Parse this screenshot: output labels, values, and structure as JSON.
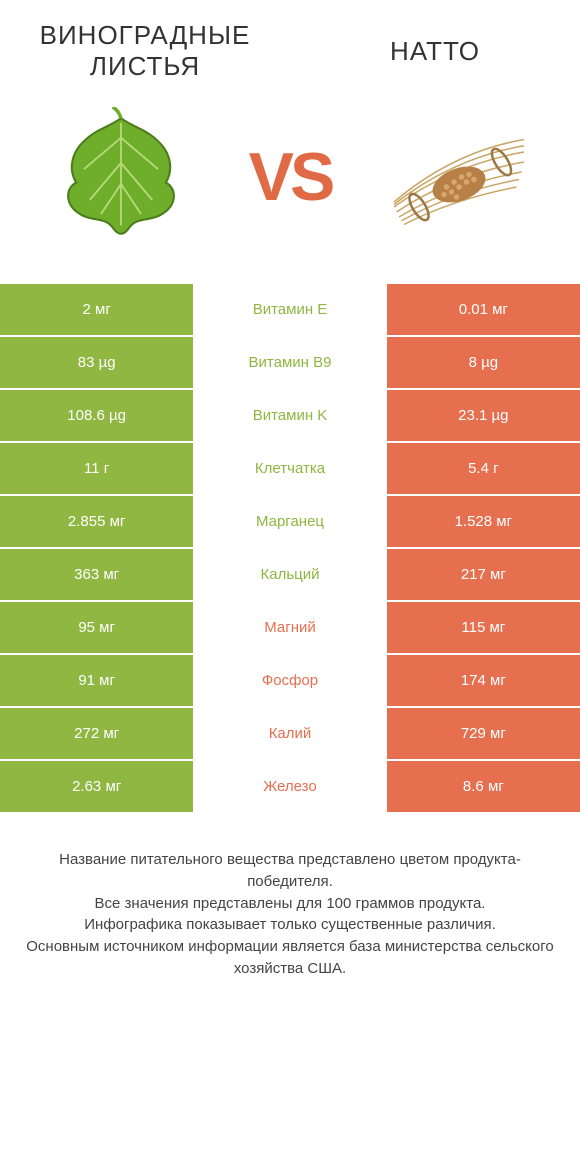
{
  "colors": {
    "green": "#8fb741",
    "orange": "#e56f4f",
    "white": "#ffffff",
    "text": "#333333",
    "vs": "#e06a45"
  },
  "header": {
    "left_title": "ВИНОГРАДНЫЕ\nЛИСТЬЯ",
    "right_title": "НАТТО",
    "vs": "VS"
  },
  "rows": [
    {
      "left": "2 мг",
      "mid": "Витамин E",
      "right": "0.01 мг",
      "winner": "left"
    },
    {
      "left": "83 µg",
      "mid": "Витамин B9",
      "right": "8 µg",
      "winner": "left"
    },
    {
      "left": "108.6 µg",
      "mid": "Витамин K",
      "right": "23.1 µg",
      "winner": "left"
    },
    {
      "left": "11 г",
      "mid": "Клетчатка",
      "right": "5.4 г",
      "winner": "left"
    },
    {
      "left": "2.855 мг",
      "mid": "Марганец",
      "right": "1.528 мг",
      "winner": "left"
    },
    {
      "left": "363 мг",
      "mid": "Кальций",
      "right": "217 мг",
      "winner": "left"
    },
    {
      "left": "95 мг",
      "mid": "Магний",
      "right": "115 мг",
      "winner": "right"
    },
    {
      "left": "91 мг",
      "mid": "Фосфор",
      "right": "174 мг",
      "winner": "right"
    },
    {
      "left": "272 мг",
      "mid": "Калий",
      "right": "729 мг",
      "winner": "right"
    },
    {
      "left": "2.63 мг",
      "mid": "Железо",
      "right": "8.6 мг",
      "winner": "right"
    }
  ],
  "footer": {
    "line1": "Название питательного вещества представлено цветом продукта-победителя.",
    "line2": "Все значения представлены для 100 граммов продукта.",
    "line3": "Инфографика показывает только существенные различия.",
    "line4": "Основным источником информации является база министерства сельского хозяйства США."
  }
}
